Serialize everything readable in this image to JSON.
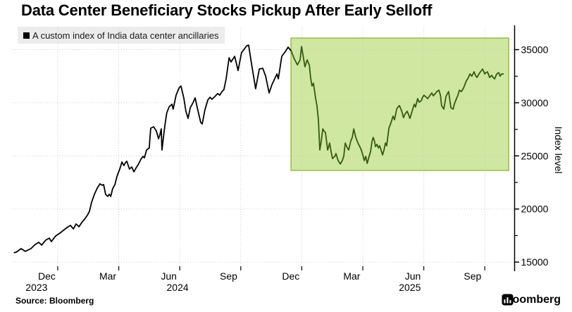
{
  "page": {
    "title": "Data Center Beneficiary Stocks Pickup After Early Selloff",
    "legend_label": "A custom index of India data center ancillaries",
    "source": "Source: Bloomberg",
    "brand": "Bloomberg"
  },
  "colors": {
    "background": "#ffffff",
    "line": "#000000",
    "line_highlighted": "#335c10",
    "highlight_fill": "#cfe7a0",
    "highlight_stroke": "#96c44e",
    "grid": "#c9c9c9",
    "axis": "#000000",
    "legend_bg": "#ececec",
    "text": "#000000"
  },
  "chart_data": {
    "type": "line",
    "title": "Data Center Beneficiary Stocks Pickup After Early Selloff",
    "series_name": "A custom index of India data center ancillaries",
    "x_unit": "decimal_year",
    "xlabel": "",
    "ylabel": "Index level",
    "ylim": [
      14150,
      37150
    ],
    "xlim": [
      2023.81,
      2026.05
    ],
    "grid": true,
    "legend_position": "top-left",
    "y_ticks": [
      15000,
      20000,
      25000,
      30000,
      35000
    ],
    "y_minor_ticks": [
      17500,
      22500,
      27500,
      32500
    ],
    "x_gridlines": [
      2024.0,
      2024.25,
      2024.5,
      2024.75,
      2025.0,
      2025.25,
      2025.5,
      2025.75
    ],
    "x_tick_labels": [
      {
        "label": "Dec",
        "t": 2023.955
      },
      {
        "label": "Mar",
        "t": 2024.205
      },
      {
        "label": "Jun",
        "t": 2024.455
      },
      {
        "label": "Sep",
        "t": 2024.7
      },
      {
        "label": "Dec",
        "t": 2024.955
      },
      {
        "label": "Mar",
        "t": 2025.205
      },
      {
        "label": "Jun",
        "t": 2025.455
      },
      {
        "label": "Sep",
        "t": 2025.7
      }
    ],
    "year_labels": [
      {
        "label": "2023",
        "t": 2023.913
      },
      {
        "label": "2024",
        "t": 2024.491
      },
      {
        "label": "2025",
        "t": 2025.443
      }
    ],
    "highlight_region": {
      "t_start": 2024.956,
      "t_end": 2025.848,
      "v_min": 23630,
      "v_max": 36090
    },
    "points": [
      [
        2023.82,
        15880
      ],
      [
        2023.83,
        15940
      ],
      [
        2023.85,
        16270
      ],
      [
        2023.867,
        16010
      ],
      [
        2023.89,
        16270
      ],
      [
        2023.908,
        16670
      ],
      [
        2023.922,
        16870
      ],
      [
        2023.934,
        16600
      ],
      [
        2023.951,
        17070
      ],
      [
        2023.965,
        17260
      ],
      [
        2023.974,
        16930
      ],
      [
        2023.991,
        17460
      ],
      [
        2024.009,
        17730
      ],
      [
        2024.023,
        17990
      ],
      [
        2024.038,
        18260
      ],
      [
        2024.052,
        18460
      ],
      [
        2024.064,
        18120
      ],
      [
        2024.075,
        18590
      ],
      [
        2024.087,
        18330
      ],
      [
        2024.098,
        18720
      ],
      [
        2024.11,
        19050
      ],
      [
        2024.121,
        19390
      ],
      [
        2024.13,
        19780
      ],
      [
        2024.139,
        20650
      ],
      [
        2024.15,
        21380
      ],
      [
        2024.162,
        21970
      ],
      [
        2024.173,
        22370
      ],
      [
        2024.182,
        22240
      ],
      [
        2024.188,
        22300
      ],
      [
        2024.196,
        21380
      ],
      [
        2024.205,
        21180
      ],
      [
        2024.211,
        21380
      ],
      [
        2024.217,
        21180
      ],
      [
        2024.225,
        21910
      ],
      [
        2024.234,
        22300
      ],
      [
        2024.243,
        23100
      ],
      [
        2024.254,
        23760
      ],
      [
        2024.263,
        24420
      ],
      [
        2024.271,
        24090
      ],
      [
        2024.277,
        24360
      ],
      [
        2024.283,
        24490
      ],
      [
        2024.294,
        23760
      ],
      [
        2024.303,
        23960
      ],
      [
        2024.312,
        23500
      ],
      [
        2024.32,
        23830
      ],
      [
        2024.329,
        24160
      ],
      [
        2024.341,
        24690
      ],
      [
        2024.349,
        24950
      ],
      [
        2024.355,
        24820
      ],
      [
        2024.364,
        25550
      ],
      [
        2024.375,
        25750
      ],
      [
        2024.378,
        26740
      ],
      [
        2024.381,
        27610
      ],
      [
        2024.393,
        27740
      ],
      [
        2024.404,
        27340
      ],
      [
        2024.413,
        26610
      ],
      [
        2024.419,
        27010
      ],
      [
        2024.424,
        27540
      ],
      [
        2024.427,
        25550
      ],
      [
        2024.433,
        26740
      ],
      [
        2024.439,
        27870
      ],
      [
        2024.447,
        29070
      ],
      [
        2024.456,
        29600
      ],
      [
        2024.468,
        29860
      ],
      [
        2024.473,
        29400
      ],
      [
        2024.485,
        30720
      ],
      [
        2024.497,
        31390
      ],
      [
        2024.505,
        31580
      ],
      [
        2024.517,
        30390
      ],
      [
        2024.525,
        29200
      ],
      [
        2024.534,
        28530
      ],
      [
        2024.543,
        29530
      ],
      [
        2024.554,
        29990
      ],
      [
        2024.563,
        30460
      ],
      [
        2024.575,
        29200
      ],
      [
        2024.586,
        28140
      ],
      [
        2024.592,
        28010
      ],
      [
        2024.603,
        29330
      ],
      [
        2024.615,
        30260
      ],
      [
        2024.624,
        30520
      ],
      [
        2024.632,
        30330
      ],
      [
        2024.644,
        30590
      ],
      [
        2024.655,
        30860
      ],
      [
        2024.664,
        30720
      ],
      [
        2024.673,
        31050
      ],
      [
        2024.681,
        31250
      ],
      [
        2024.69,
        32250
      ],
      [
        2024.702,
        34240
      ],
      [
        2024.71,
        33840
      ],
      [
        2024.725,
        34370
      ],
      [
        2024.739,
        33040
      ],
      [
        2024.753,
        34700
      ],
      [
        2024.774,
        35360
      ],
      [
        2024.782,
        35430
      ],
      [
        2024.797,
        33240
      ],
      [
        2024.811,
        31320
      ],
      [
        2024.826,
        33180
      ],
      [
        2024.84,
        33240
      ],
      [
        2024.852,
        32510
      ],
      [
        2024.866,
        30920
      ],
      [
        2024.878,
        31720
      ],
      [
        2024.889,
        32250
      ],
      [
        2024.898,
        32710
      ],
      [
        2024.904,
        32250
      ],
      [
        2024.918,
        34370
      ],
      [
        2024.933,
        34830
      ],
      [
        2024.944,
        35230
      ],
      [
        2024.956,
        34900
      ],
      [
        2024.97,
        34100
      ],
      [
        2024.982,
        33570
      ],
      [
        2024.993,
        34040
      ],
      [
        2024.999,
        35300
      ],
      [
        2025.013,
        33380
      ],
      [
        2025.022,
        34040
      ],
      [
        2025.031,
        33570
      ],
      [
        2025.036,
        32380
      ],
      [
        2025.042,
        31580
      ],
      [
        2025.048,
        31840
      ],
      [
        2025.057,
        30390
      ],
      [
        2025.062,
        29730
      ],
      [
        2025.068,
        28400
      ],
      [
        2025.074,
        25550
      ],
      [
        2025.08,
        26410
      ],
      [
        2025.086,
        27540
      ],
      [
        2025.091,
        27340
      ],
      [
        2025.097,
        27210
      ],
      [
        2025.106,
        25550
      ],
      [
        2025.111,
        25950
      ],
      [
        2025.114,
        26210
      ],
      [
        2025.12,
        25420
      ],
      [
        2025.126,
        24750
      ],
      [
        2025.135,
        24950
      ],
      [
        2025.14,
        25220
      ],
      [
        2025.149,
        24560
      ],
      [
        2025.158,
        24230
      ],
      [
        2025.166,
        24560
      ],
      [
        2025.172,
        24950
      ],
      [
        2025.178,
        26210
      ],
      [
        2025.184,
        25880
      ],
      [
        2025.192,
        25550
      ],
      [
        2025.201,
        26410
      ],
      [
        2025.207,
        26740
      ],
      [
        2025.213,
        27540
      ],
      [
        2025.221,
        26740
      ],
      [
        2025.23,
        26210
      ],
      [
        2025.236,
        25950
      ],
      [
        2025.244,
        25550
      ],
      [
        2025.25,
        25090
      ],
      [
        2025.256,
        24560
      ],
      [
        2025.262,
        24950
      ],
      [
        2025.268,
        24290
      ],
      [
        2025.276,
        24950
      ],
      [
        2025.282,
        25420
      ],
      [
        2025.288,
        26410
      ],
      [
        2025.293,
        26740
      ],
      [
        2025.299,
        26280
      ],
      [
        2025.302,
        25880
      ],
      [
        2025.308,
        26080
      ],
      [
        2025.314,
        25750
      ],
      [
        2025.319,
        25950
      ],
      [
        2025.325,
        25550
      ],
      [
        2025.331,
        25090
      ],
      [
        2025.337,
        25550
      ],
      [
        2025.343,
        26210
      ],
      [
        2025.348,
        25950
      ],
      [
        2025.357,
        27610
      ],
      [
        2025.365,
        28070
      ],
      [
        2025.374,
        28740
      ],
      [
        2025.38,
        28400
      ],
      [
        2025.389,
        29400
      ],
      [
        2025.394,
        29600
      ],
      [
        2025.4,
        29730
      ],
      [
        2025.409,
        29260
      ],
      [
        2025.417,
        28600
      ],
      [
        2025.423,
        28930
      ],
      [
        2025.432,
        29200
      ],
      [
        2025.438,
        28870
      ],
      [
        2025.443,
        28530
      ],
      [
        2025.452,
        29200
      ],
      [
        2025.461,
        29860
      ],
      [
        2025.466,
        29600
      ],
      [
        2025.475,
        30390
      ],
      [
        2025.481,
        30060
      ],
      [
        2025.49,
        30190
      ],
      [
        2025.495,
        30520
      ],
      [
        2025.501,
        30720
      ],
      [
        2025.51,
        30520
      ],
      [
        2025.516,
        30390
      ],
      [
        2025.524,
        30650
      ],
      [
        2025.533,
        30920
      ],
      [
        2025.539,
        30650
      ],
      [
        2025.547,
        30860
      ],
      [
        2025.553,
        31050
      ],
      [
        2025.562,
        31190
      ],
      [
        2025.568,
        30720
      ],
      [
        2025.573,
        29730
      ],
      [
        2025.582,
        29400
      ],
      [
        2025.591,
        30590
      ],
      [
        2025.597,
        30860
      ],
      [
        2025.602,
        31050
      ],
      [
        2025.611,
        29530
      ],
      [
        2025.62,
        29400
      ],
      [
        2025.625,
        29860
      ],
      [
        2025.634,
        30390
      ],
      [
        2025.64,
        30720
      ],
      [
        2025.646,
        31190
      ],
      [
        2025.654,
        31050
      ],
      [
        2025.663,
        31390
      ],
      [
        2025.674,
        32050
      ],
      [
        2025.683,
        32380
      ],
      [
        2025.689,
        32710
      ],
      [
        2025.697,
        32510
      ],
      [
        2025.706,
        32910
      ],
      [
        2025.712,
        32580
      ],
      [
        2025.718,
        32380
      ],
      [
        2025.726,
        32710
      ],
      [
        2025.732,
        32910
      ],
      [
        2025.741,
        33170
      ],
      [
        2025.75,
        32710
      ],
      [
        2025.755,
        32840
      ],
      [
        2025.761,
        32910
      ],
      [
        2025.77,
        32380
      ],
      [
        2025.778,
        32580
      ],
      [
        2025.784,
        32380
      ],
      [
        2025.79,
        32250
      ],
      [
        2025.799,
        32710
      ],
      [
        2025.807,
        32840
      ],
      [
        2025.813,
        32510
      ],
      [
        2025.819,
        32710
      ],
      [
        2025.828,
        32710
      ]
    ]
  }
}
